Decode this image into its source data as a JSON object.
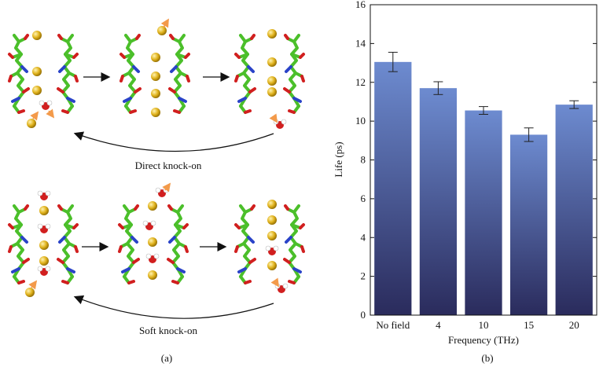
{
  "panel_a": {
    "top_caption": "Direct knock-on",
    "bottom_caption": "Soft knock-on",
    "label": "(a)"
  },
  "panel_b": {
    "label": "(b)"
  },
  "colors": {
    "bar_top": "#6d8bd0",
    "bar_bottom": "#2a2b5c",
    "ion": "#e0b21c",
    "carbon": "#4bbf2a",
    "oxygen": "#d11f1f",
    "nitrogen": "#2a43c8",
    "arrow_orange": "#f39a4a"
  },
  "chart_data": {
    "type": "bar",
    "categories": [
      "No field",
      "4",
      "10",
      "15",
      "20"
    ],
    "values": [
      13.05,
      11.7,
      10.55,
      9.3,
      10.85
    ],
    "errors": [
      0.5,
      0.33,
      0.2,
      0.35,
      0.2
    ],
    "xlabel": "Frequency (THz)",
    "ylabel": "Life (ps)",
    "ylim": [
      0,
      16
    ],
    "yticks": [
      0,
      2,
      4,
      6,
      8,
      10,
      12,
      14,
      16
    ],
    "grid": false
  }
}
